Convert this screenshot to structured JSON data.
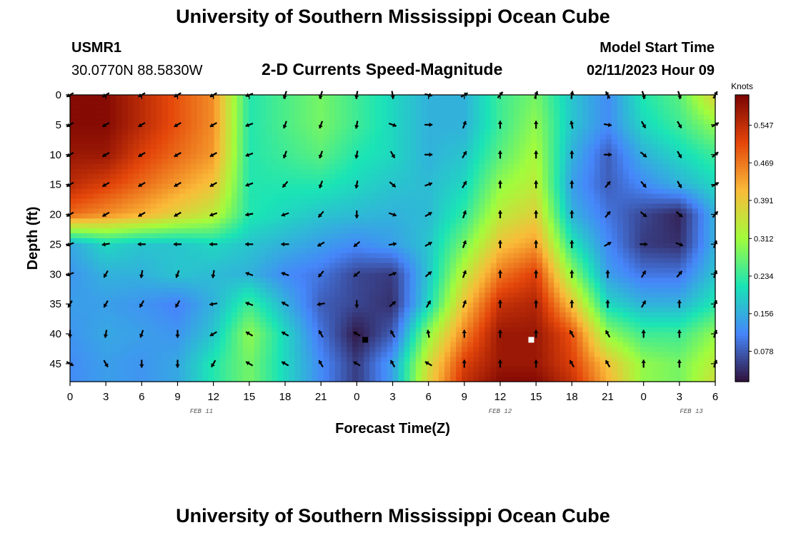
{
  "page": {
    "title": "University of Southern Mississippi Ocean Cube",
    "footer_title": "University of Southern Mississippi Ocean Cube"
  },
  "header": {
    "station": "USMR1",
    "coordinates": "30.0770N  88.5830W",
    "subtitle": "2-D Currents Speed-Magnitude",
    "model_label": "Model Start Time",
    "model_time": "02/11/2023 Hour 09"
  },
  "chart_data": {
    "type": "heatmap",
    "title": "2-D Currents Speed-Magnitude",
    "xlabel": "Forecast Time(Z)",
    "ylabel": "Depth (ft)",
    "x_ticks": [
      "0",
      "3",
      "6",
      "9",
      "12",
      "15",
      "18",
      "21",
      "0",
      "3",
      "6",
      "9",
      "12",
      "15",
      "18",
      "21",
      "0",
      "3",
      "6"
    ],
    "x_hours": [
      0,
      3,
      6,
      9,
      12,
      15,
      18,
      21,
      24,
      27,
      30,
      33,
      36,
      39,
      42,
      45,
      48,
      51,
      54
    ],
    "xlim_hours": [
      0,
      54
    ],
    "date_labels": [
      {
        "label": "FEB 11",
        "hour": 11
      },
      {
        "label": "FEB 12",
        "hour": 36
      },
      {
        "label": "FEB 13",
        "hour": 52
      }
    ],
    "y_ticks": [
      0,
      5,
      10,
      15,
      20,
      25,
      30,
      35,
      40,
      45
    ],
    "ylim": [
      0,
      48
    ],
    "y_inverted": true,
    "colorbar": {
      "label": "Knots",
      "ticks": [
        "0.547",
        "0.469",
        "0.391",
        "0.312",
        "0.234",
        "0.156",
        "0.078"
      ],
      "tick_values": [
        0.547,
        0.469,
        0.391,
        0.312,
        0.234,
        0.156,
        0.078
      ],
      "range": [
        0.015,
        0.61
      ],
      "colors": [
        "#30123b",
        "#4686fb",
        "#1ae4b6",
        "#a2fc3c",
        "#fabb39",
        "#e4460a",
        "#7a0403"
      ]
    },
    "speed_field": {
      "units": "knots",
      "hours": [
        0,
        3,
        6,
        9,
        12,
        15,
        18,
        21,
        24,
        27,
        30,
        33,
        36,
        39,
        42,
        45,
        48,
        51,
        54
      ],
      "depths": [
        0,
        5,
        10,
        15,
        20,
        25,
        30,
        35,
        40,
        45,
        48
      ],
      "values": [
        [
          0.6,
          0.6,
          0.55,
          0.5,
          0.45,
          0.22,
          0.25,
          0.28,
          0.24,
          0.2,
          0.16,
          0.16,
          0.24,
          0.28,
          0.18,
          0.12,
          0.22,
          0.26,
          0.38
        ],
        [
          0.6,
          0.6,
          0.55,
          0.5,
          0.45,
          0.22,
          0.25,
          0.28,
          0.24,
          0.2,
          0.16,
          0.16,
          0.24,
          0.3,
          0.18,
          0.12,
          0.2,
          0.24,
          0.3
        ],
        [
          0.58,
          0.58,
          0.52,
          0.48,
          0.44,
          0.22,
          0.24,
          0.26,
          0.22,
          0.2,
          0.16,
          0.18,
          0.26,
          0.32,
          0.16,
          0.08,
          0.16,
          0.2,
          0.24
        ],
        [
          0.55,
          0.52,
          0.48,
          0.44,
          0.4,
          0.22,
          0.22,
          0.22,
          0.2,
          0.18,
          0.17,
          0.2,
          0.3,
          0.34,
          0.14,
          0.08,
          0.12,
          0.16,
          0.2
        ],
        [
          0.48,
          0.45,
          0.42,
          0.38,
          0.34,
          0.22,
          0.2,
          0.18,
          0.17,
          0.16,
          0.17,
          0.23,
          0.34,
          0.38,
          0.16,
          0.1,
          0.06,
          0.03,
          0.16
        ],
        [
          0.15,
          0.2,
          0.18,
          0.18,
          0.2,
          0.18,
          0.16,
          0.14,
          0.12,
          0.14,
          0.18,
          0.28,
          0.4,
          0.44,
          0.22,
          0.12,
          0.05,
          0.04,
          0.16
        ],
        [
          0.13,
          0.16,
          0.16,
          0.18,
          0.17,
          0.16,
          0.12,
          0.1,
          0.06,
          0.05,
          0.18,
          0.34,
          0.47,
          0.52,
          0.3,
          0.14,
          0.1,
          0.1,
          0.18
        ],
        [
          0.14,
          0.14,
          0.13,
          0.11,
          0.16,
          0.24,
          0.16,
          0.08,
          0.06,
          0.04,
          0.2,
          0.4,
          0.54,
          0.56,
          0.4,
          0.2,
          0.16,
          0.16,
          0.22
        ],
        [
          0.13,
          0.15,
          0.14,
          0.13,
          0.18,
          0.3,
          0.2,
          0.1,
          0.02,
          0.08,
          0.3,
          0.46,
          0.58,
          0.58,
          0.5,
          0.3,
          0.24,
          0.24,
          0.3
        ],
        [
          0.12,
          0.14,
          0.13,
          0.15,
          0.22,
          0.28,
          0.2,
          0.12,
          0.05,
          0.14,
          0.36,
          0.52,
          0.58,
          0.58,
          0.52,
          0.4,
          0.3,
          0.28,
          0.34
        ],
        [
          0.12,
          0.14,
          0.13,
          0.15,
          0.22,
          0.28,
          0.2,
          0.12,
          0.05,
          0.14,
          0.38,
          0.54,
          0.6,
          0.6,
          0.54,
          0.42,
          0.3,
          0.28,
          0.36
        ]
      ]
    },
    "current_vectors": {
      "description_units": "direction toward, degrees clockwise from north",
      "hours": [
        0,
        3,
        6,
        9,
        12,
        15,
        18,
        21,
        24,
        27,
        30,
        33,
        36,
        39,
        42,
        45,
        48,
        51,
        54
      ],
      "depths": [
        0,
        5,
        10,
        15,
        20,
        25,
        30,
        35,
        40,
        45
      ],
      "directions": [
        [
          240,
          240,
          240,
          240,
          240,
          250,
          200,
          200,
          190,
          170,
          100,
          60,
          40,
          20,
          10,
          330,
          160,
          160,
          30
        ],
        [
          240,
          240,
          240,
          240,
          240,
          250,
          200,
          200,
          190,
          110,
          90,
          20,
          0,
          0,
          350,
          100,
          150,
          150,
          60
        ],
        [
          240,
          240,
          240,
          240,
          240,
          250,
          200,
          200,
          190,
          150,
          90,
          30,
          0,
          0,
          0,
          90,
          130,
          150,
          50
        ],
        [
          240,
          240,
          240,
          240,
          240,
          250,
          220,
          200,
          190,
          130,
          70,
          30,
          0,
          0,
          0,
          40,
          140,
          150,
          60
        ],
        [
          240,
          240,
          240,
          240,
          250,
          260,
          250,
          220,
          180,
          110,
          60,
          20,
          0,
          0,
          0,
          40,
          130,
          130,
          40
        ],
        [
          250,
          260,
          270,
          270,
          270,
          270,
          270,
          240,
          230,
          80,
          60,
          20,
          0,
          0,
          0,
          60,
          90,
          110,
          20
        ],
        [
          250,
          210,
          190,
          200,
          190,
          290,
          290,
          220,
          230,
          70,
          50,
          20,
          0,
          0,
          0,
          0,
          30,
          40,
          20
        ],
        [
          210,
          210,
          210,
          210,
          260,
          290,
          300,
          260,
          180,
          50,
          30,
          20,
          0,
          0,
          0,
          0,
          30,
          0,
          20
        ],
        [
          180,
          190,
          200,
          180,
          240,
          300,
          300,
          330,
          300,
          330,
          350,
          0,
          0,
          0,
          330,
          330,
          0,
          0,
          20
        ],
        [
          120,
          150,
          180,
          180,
          210,
          300,
          300,
          330,
          300,
          330,
          300,
          0,
          0,
          0,
          330,
          330,
          0,
          0,
          20
        ]
      ]
    },
    "markers": [
      {
        "hour": 24.7,
        "depth": 41,
        "color": "#000000"
      },
      {
        "hour": 38.6,
        "depth": 41,
        "color": "#ffffff"
      }
    ]
  }
}
